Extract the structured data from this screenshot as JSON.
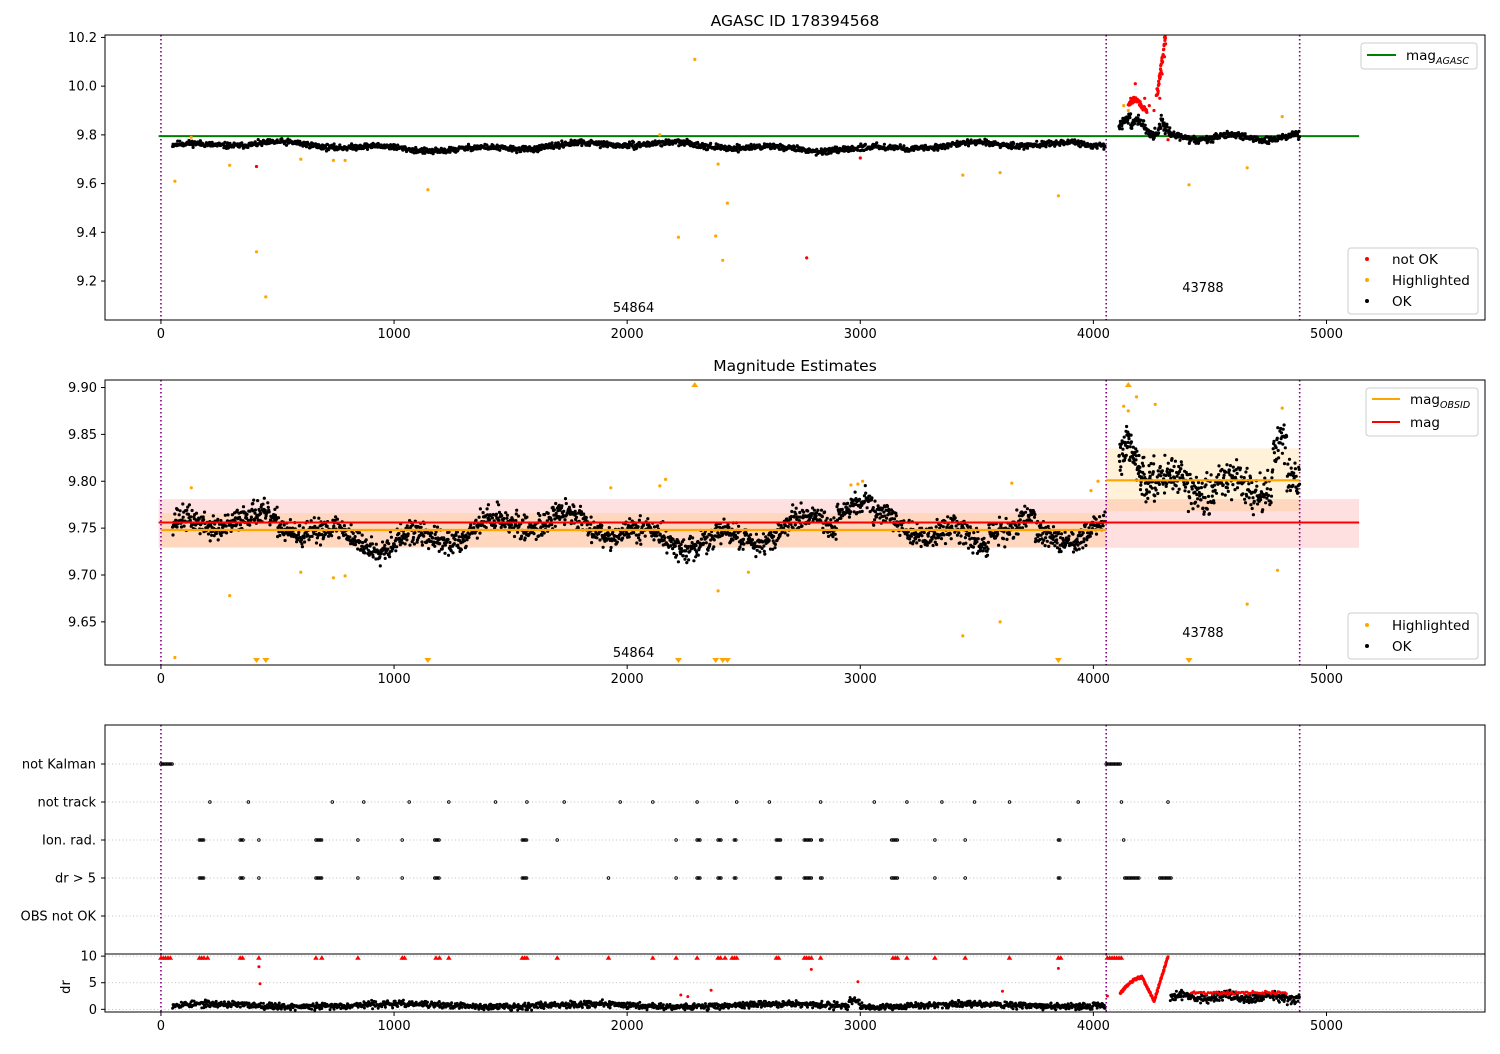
{
  "chart_data": [
    {
      "type": "scatter",
      "title": "AGASC ID 178394568",
      "xlim": [
        -240,
        5680
      ],
      "ylim": [
        9.04,
        10.21
      ],
      "x_ticks": [
        0,
        1000,
        2000,
        3000,
        4000,
        5000
      ],
      "y_ticks": [
        9.2,
        9.4,
        9.6,
        9.8,
        10.0,
        10.2
      ],
      "y_tick_labels": [
        "9.2",
        "9.4",
        "9.6",
        "9.8",
        "10.0",
        "10.2"
      ],
      "obs_boundaries": [
        0,
        4055,
        4885
      ],
      "segments": [
        {
          "label": "54864",
          "x_start": 0,
          "x_end": 4055
        },
        {
          "label": "43788",
          "x_start": 4055,
          "x_end": 4885
        }
      ],
      "mag_agasc": 9.795,
      "mag_agasc_x_range": [
        -10,
        5140
      ],
      "lines": [
        {
          "name_main": "mag",
          "name_sub": "AGASC",
          "color": "#008000"
        }
      ],
      "series": [
        {
          "name": "not OK",
          "color": "#ff0000",
          "points": [
            [
              410,
              9.67
            ],
            [
              2770,
              9.295
            ],
            [
              3000,
              9.705
            ],
            [
              4160,
              9.95
            ],
            [
              4180,
              10.01
            ],
            [
              4200,
              9.93
            ],
            [
              4220,
              9.95
            ],
            [
              4240,
              9.92
            ],
            [
              4260,
              9.9
            ],
            [
              4285,
              9.95
            ],
            [
              4295,
              10.05
            ],
            [
              4305,
              10.2
            ],
            [
              4320,
              9.78
            ]
          ]
        },
        {
          "name": "Highlighted",
          "color": "#ffa500",
          "points": [
            [
              60,
              9.61
            ],
            [
              130,
              9.79
            ],
            [
              295,
              9.675
            ],
            [
              410,
              9.32
            ],
            [
              450,
              9.135
            ],
            [
              600,
              9.7
            ],
            [
              740,
              9.695
            ],
            [
              790,
              9.695
            ],
            [
              1145,
              9.575
            ],
            [
              2140,
              9.8
            ],
            [
              2220,
              9.38
            ],
            [
              2290,
              10.11
            ],
            [
              2380,
              9.385
            ],
            [
              2390,
              9.68
            ],
            [
              2410,
              9.285
            ],
            [
              2430,
              9.52
            ],
            [
              3440,
              9.635
            ],
            [
              3600,
              9.645
            ],
            [
              3850,
              9.55
            ],
            [
              4130,
              9.92
            ],
            [
              4150,
              9.9
            ],
            [
              4410,
              9.595
            ],
            [
              4660,
              9.665
            ],
            [
              4810,
              9.875
            ]
          ]
        },
        {
          "name": "OK",
          "color": "#000000",
          "generator": "lightcurve-1"
        }
      ],
      "legend": [
        {
          "label": "not OK",
          "color": "#ff0000"
        },
        {
          "label": "Highlighted",
          "color": "#ffa500"
        },
        {
          "label": "OK",
          "color": "#000000"
        }
      ],
      "legend_position": "lower-right",
      "line_legend_position": "upper-right"
    },
    {
      "type": "scatter",
      "title": "Magnitude Estimates",
      "xlim": [
        -240,
        5680
      ],
      "ylim": [
        9.604,
        9.908
      ],
      "x_ticks": [
        0,
        1000,
        2000,
        3000,
        4000,
        5000
      ],
      "y_ticks": [
        9.65,
        9.7,
        9.75,
        9.8,
        9.85,
        9.9
      ],
      "y_tick_labels": [
        "9.65",
        "9.70",
        "9.75",
        "9.80",
        "9.85",
        "9.90"
      ],
      "obs_boundaries": [
        0,
        4055,
        4885
      ],
      "segments": [
        {
          "label": "54864",
          "x_start": 0,
          "x_end": 4055
        },
        {
          "label": "43788",
          "x_start": 4055,
          "x_end": 4885
        }
      ],
      "mag": {
        "value": 9.756,
        "band": [
          9.729,
          9.781
        ],
        "x_range": [
          -10,
          5140
        ],
        "color": "#ff0000"
      },
      "mag_obsid": [
        {
          "value": 9.748,
          "band": [
            9.73,
            9.766
          ],
          "x_range": [
            0,
            4055
          ]
        },
        {
          "value": 9.801,
          "band": [
            9.768,
            9.835
          ],
          "x_range": [
            4055,
            4885
          ]
        }
      ],
      "lines": [
        {
          "name_main": "mag",
          "name_sub": "OBSID",
          "color": "#ffa500"
        },
        {
          "name_main": "mag",
          "name_sub": "",
          "color": "#ff0000"
        }
      ],
      "series": [
        {
          "name": "Highlighted",
          "color": "#ffa500",
          "points": [
            [
              60,
              9.612
            ],
            [
              130,
              9.793
            ],
            [
              295,
              9.678
            ],
            [
              600,
              9.703
            ],
            [
              740,
              9.697
            ],
            [
              790,
              9.699
            ],
            [
              1930,
              9.793
            ],
            [
              2140,
              9.795
            ],
            [
              2165,
              9.802
            ],
            [
              2390,
              9.683
            ],
            [
              2520,
              9.703
            ],
            [
              2960,
              9.796
            ],
            [
              2990,
              9.797
            ],
            [
              3010,
              9.8
            ],
            [
              3440,
              9.635
            ],
            [
              3600,
              9.65
            ],
            [
              3650,
              9.798
            ],
            [
              3990,
              9.79
            ],
            [
              4020,
              9.8
            ],
            [
              4130,
              9.88
            ],
            [
              4150,
              9.875
            ],
            [
              4185,
              9.89
            ],
            [
              4265,
              9.882
            ],
            [
              4660,
              9.669
            ],
            [
              4790,
              9.705
            ],
            [
              4810,
              9.878
            ]
          ]
        },
        {
          "name": "OK",
          "color": "#000000",
          "generator": "lightcurve-2"
        }
      ],
      "below_range_markers": [
        410,
        450,
        1145,
        2220,
        2380,
        2410,
        2430,
        3850,
        4410
      ],
      "above_range_markers": [
        2290,
        4150
      ],
      "legend": [
        {
          "label": "Highlighted",
          "color": "#ffa500"
        },
        {
          "label": "OK",
          "color": "#000000"
        }
      ],
      "legend_position": "lower-right",
      "line_legend_position": "upper-right"
    },
    {
      "type": "scatter",
      "title": "",
      "xlim": [
        -240,
        5680
      ],
      "rows": [
        "not Kalman",
        "not track",
        "Ion. rad.",
        "dr > 5",
        "OBS not OK"
      ],
      "flags": {
        "not Kalman": [
          [
            0,
            50
          ],
          [
            4055,
            4120
          ]
        ],
        "not track": [
          210,
          375,
          735,
          870,
          1065,
          1235,
          1435,
          1570,
          1730,
          1970,
          2110,
          2300,
          2470,
          2610,
          2830,
          3060,
          3200,
          3350,
          3490,
          3640,
          3935,
          4120,
          4320
        ],
        "Ion. rad.": [
          [
            165,
            185
          ],
          [
            340,
            355
          ],
          [
            420,
            420
          ],
          [
            665,
            690
          ],
          [
            845,
            850
          ],
          [
            1035,
            1040
          ],
          [
            1175,
            1195
          ],
          [
            1550,
            1570
          ],
          [
            1700,
            1705
          ],
          [
            2210,
            2215
          ],
          [
            2300,
            2315
          ],
          [
            2390,
            2405
          ],
          [
            2460,
            2470
          ],
          [
            2640,
            2660
          ],
          [
            2760,
            2790
          ],
          [
            2830,
            2840
          ],
          [
            3135,
            3160
          ],
          [
            3320,
            3325
          ],
          [
            3450,
            3455
          ],
          [
            3850,
            3860
          ],
          [
            4130,
            4135
          ]
        ],
        "dr > 5": [
          [
            165,
            185
          ],
          [
            340,
            355
          ],
          [
            420,
            420
          ],
          [
            665,
            690
          ],
          [
            845,
            850
          ],
          [
            1035,
            1040
          ],
          [
            1175,
            1195
          ],
          [
            1550,
            1570
          ],
          [
            1920,
            1925
          ],
          [
            2210,
            2215
          ],
          [
            2300,
            2315
          ],
          [
            2390,
            2405
          ],
          [
            2460,
            2470
          ],
          [
            2640,
            2660
          ],
          [
            2760,
            2790
          ],
          [
            2830,
            2840
          ],
          [
            3135,
            3160
          ],
          [
            3320,
            3325
          ],
          [
            3450,
            3455
          ],
          [
            3850,
            3860
          ],
          [
            4135,
            4200
          ],
          [
            4285,
            4335
          ]
        ],
        "OBS not OK": []
      },
      "obs_boundaries": [
        0,
        4055,
        4885
      ]
    },
    {
      "type": "scatter",
      "title": "",
      "ylabel": "dr",
      "xlim": [
        -240,
        5680
      ],
      "ylim": [
        -0.5,
        10.4
      ],
      "x_ticks": [
        0,
        1000,
        2000,
        3000,
        4000,
        5000
      ],
      "y_ticks": [
        0,
        5,
        10
      ],
      "y_tick_labels": [
        "0",
        "5",
        "10"
      ],
      "obs_boundaries": [
        0,
        4055,
        4885
      ],
      "capped_markers": [
        0,
        10,
        20,
        30,
        40,
        165,
        175,
        185,
        200,
        340,
        350,
        420,
        665,
        690,
        845,
        1035,
        1045,
        1180,
        1195,
        1235,
        1550,
        1560,
        1570,
        1700,
        1920,
        2110,
        2210,
        2300,
        2390,
        2400,
        2420,
        2450,
        2460,
        2470,
        2640,
        2650,
        2760,
        2770,
        2780,
        2790,
        2830,
        3140,
        3150,
        3160,
        3200,
        3320,
        3450,
        3640,
        3850,
        3860,
        4060,
        4070,
        4080,
        4090,
        4100,
        4110,
        4120
      ],
      "series": [
        {
          "name": "red",
          "color": "#ff0000",
          "points": [
            [
              420,
              8
            ],
            [
              425,
              4.8
            ],
            [
              2230,
              2.7
            ],
            [
              2260,
              2.4
            ],
            [
              2360,
              3.6
            ],
            [
              2790,
              7.5
            ],
            [
              2990,
              5.2
            ],
            [
              3610,
              3.4
            ],
            [
              3850,
              7.7
            ],
            [
              4060,
              2.5
            ]
          ]
        },
        {
          "name": "black",
          "color": "#000000",
          "generator": "dr-baseline"
        }
      ]
    }
  ]
}
